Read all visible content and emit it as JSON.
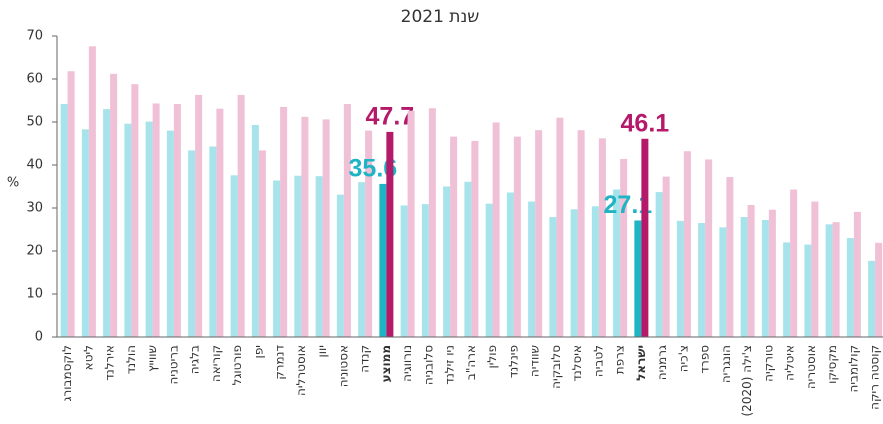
{
  "chart_data": {
    "type": "bar",
    "title": "שנת 2021",
    "y_label": "%",
    "categories": [
      "לוקסמבורג",
      "ליטא",
      "אירלנד",
      "הולנד",
      "שווייץ",
      "בריטניה",
      "בלגיה",
      "קוריאה",
      "פורטוגל",
      "יפן",
      "דנמרק",
      "אוסטרליה",
      "יוון",
      "אסטוניה",
      "קנדה",
      "ממוצע",
      "נורווגיה",
      "סלובניה",
      "ניו זילנד",
      "ארה\"ב",
      "פולין",
      "פינלנד",
      "שוודיה",
      "סלובקיה",
      "איסלנד",
      "לטביה",
      "צרפת",
      "ישראל",
      "גרמניה",
      "צ'כיה",
      "ספרד",
      "הונגריה",
      "צ'ילה (2020)",
      "טורקיה",
      "איטליה",
      "אוסטריה",
      "מקסיקו",
      "קולומביה",
      "קוסטה ריקה"
    ],
    "series": [
      {
        "color": "#a6e3ea",
        "highlight_color": "#1fb4c3",
        "values": [
          54.2,
          48.3,
          53.0,
          49.6,
          50.1,
          48.0,
          43.4,
          44.3,
          37.6,
          49.3,
          36.4,
          37.5,
          37.4,
          33.1,
          36.0,
          35.6,
          30.6,
          30.9,
          35.0,
          36.1,
          31.0,
          33.6,
          31.5,
          27.9,
          29.7,
          30.4,
          34.3,
          27.1,
          33.7,
          27.0,
          26.5,
          25.5,
          27.9,
          27.2,
          22.0,
          21.5,
          26.2,
          23.0,
          17.7
        ],
        "value_labels": [
          null,
          null,
          null,
          null,
          null,
          null,
          null,
          null,
          null,
          null,
          null,
          null,
          null,
          null,
          null,
          "35.6",
          null,
          null,
          null,
          null,
          null,
          null,
          null,
          null,
          null,
          null,
          null,
          "27.1",
          null,
          null,
          null,
          null,
          null,
          null,
          null,
          null,
          null,
          null,
          null
        ]
      },
      {
        "color": "#efc0d6",
        "highlight_color": "#b5196a",
        "values": [
          61.8,
          67.6,
          61.2,
          58.8,
          54.3,
          54.2,
          56.3,
          53.1,
          56.3,
          43.4,
          53.5,
          51.2,
          50.6,
          54.2,
          48.0,
          47.7,
          52.6,
          53.2,
          46.6,
          45.6,
          49.9,
          46.6,
          48.1,
          51.0,
          48.1,
          46.2,
          41.4,
          46.1,
          37.3,
          43.2,
          41.3,
          37.2,
          30.7,
          29.6,
          34.3,
          31.5,
          26.7,
          29.1,
          21.9
        ],
        "value_labels": [
          null,
          null,
          null,
          null,
          null,
          null,
          null,
          null,
          null,
          null,
          null,
          null,
          null,
          null,
          null,
          "47.7",
          null,
          null,
          null,
          null,
          null,
          null,
          null,
          null,
          null,
          null,
          null,
          "46.1",
          null,
          null,
          null,
          null,
          null,
          null,
          null,
          null,
          null,
          null,
          null
        ]
      }
    ],
    "ylim": [
      0,
      70
    ],
    "yticks": [
      0,
      10,
      20,
      30,
      40,
      50,
      60,
      70
    ]
  }
}
